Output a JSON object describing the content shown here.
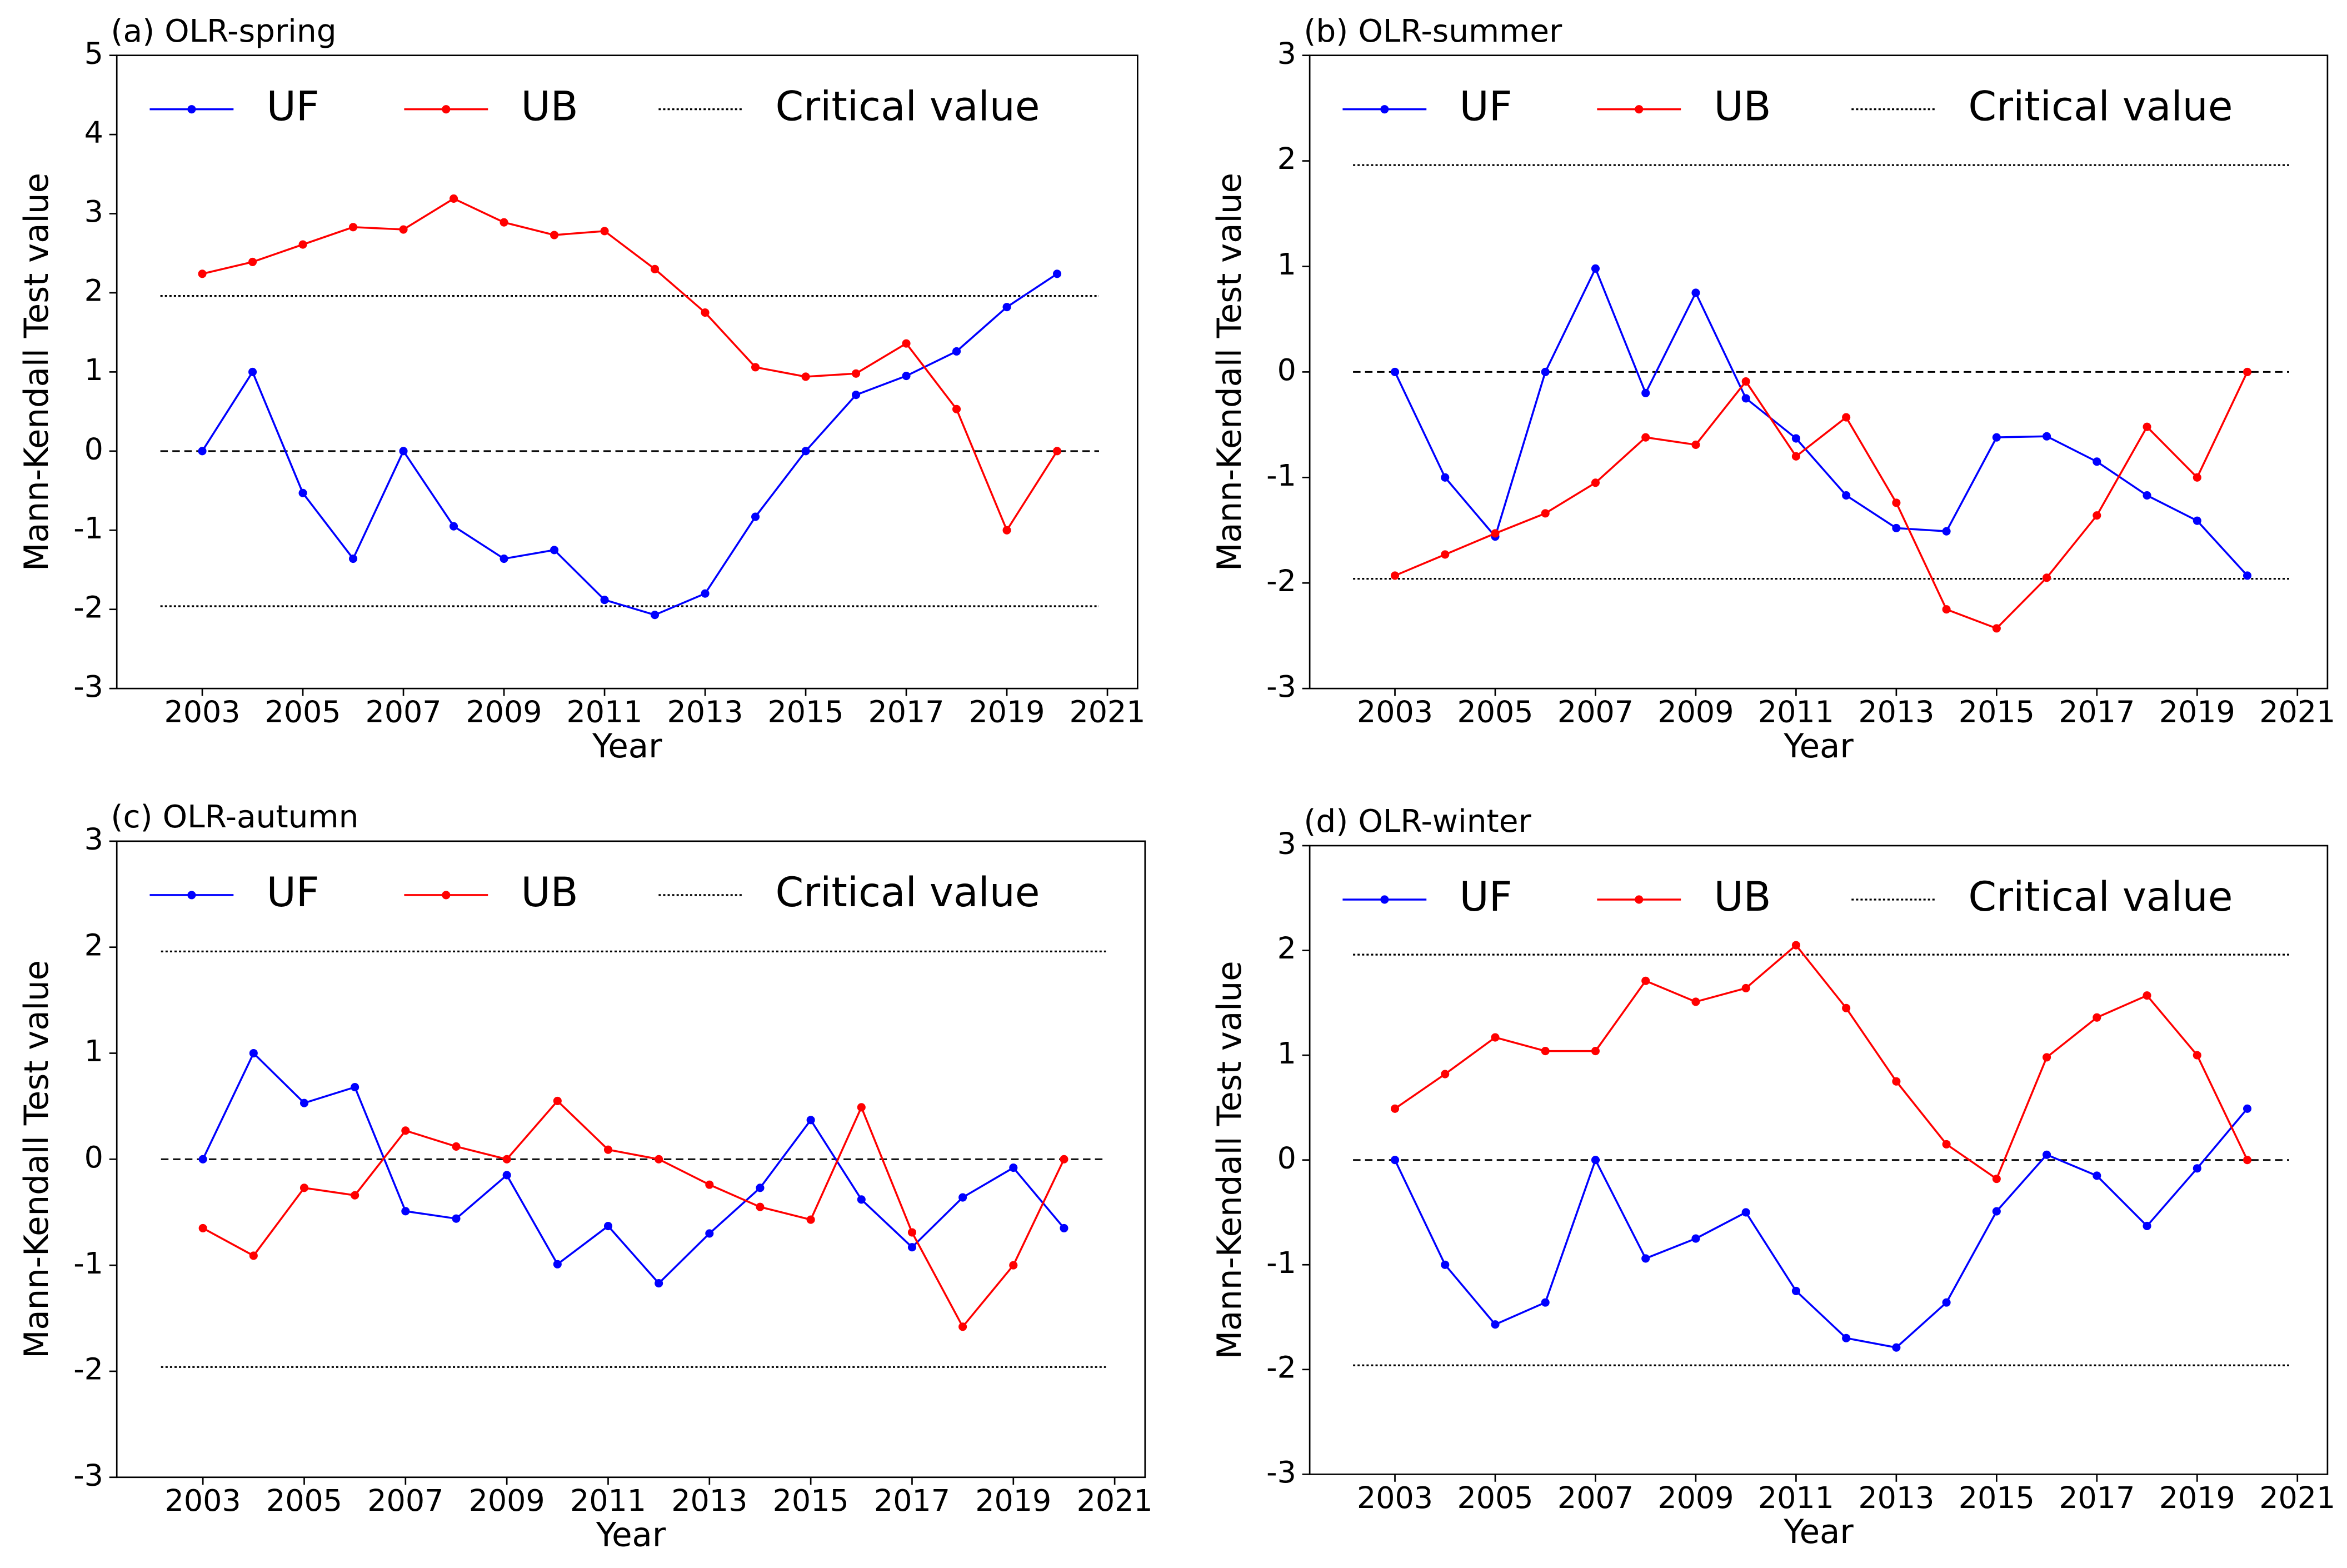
{
  "chart_data": [
    {
      "type": "line",
      "title": "(a) OLR-spring",
      "x_label": "Year",
      "y_label": "Mann-Kendall Test value",
      "x": [
        2003,
        2004,
        2005,
        2006,
        2007,
        2008,
        2009,
        2010,
        2011,
        2012,
        2013,
        2014,
        2015,
        2016,
        2017,
        2018,
        2019,
        2020
      ],
      "series": [
        {
          "name": "UF",
          "color": "#0000ff",
          "values": [
            0,
            1.0,
            -0.53,
            -1.36,
            0,
            -0.95,
            -1.36,
            -1.25,
            -1.88,
            -2.07,
            -1.8,
            -0.83,
            0,
            0.71,
            0.95,
            1.26,
            1.82,
            2.24
          ]
        },
        {
          "name": "UB",
          "color": "#ff0000",
          "values": [
            2.24,
            2.39,
            2.61,
            2.83,
            2.8,
            3.19,
            2.89,
            2.73,
            2.78,
            2.3,
            1.75,
            1.06,
            0.94,
            0.98,
            1.36,
            0.53,
            -1.0,
            0
          ]
        }
      ],
      "reference_lines": [
        {
          "name": "Critical value",
          "values": [
            1.96,
            -1.96
          ],
          "style": "dotted"
        },
        {
          "values": [
            0
          ],
          "style": "dashed"
        }
      ],
      "xlim": [
        2001.3,
        2021.6
      ],
      "xticks": [
        2003,
        2005,
        2007,
        2009,
        2011,
        2013,
        2015,
        2017,
        2019,
        2021
      ],
      "ylim": [
        -3,
        5
      ],
      "yticks": [
        -3,
        -2,
        -1,
        0,
        1,
        2,
        3,
        4,
        5
      ],
      "legend": "top"
    },
    {
      "type": "line",
      "title": "(b) OLR-summer",
      "x_label": "Year",
      "y_label": "Mann-Kendall Test value",
      "x": [
        2003,
        2004,
        2005,
        2006,
        2007,
        2008,
        2009,
        2010,
        2011,
        2012,
        2013,
        2014,
        2015,
        2016,
        2017,
        2018,
        2019,
        2020
      ],
      "series": [
        {
          "name": "UF",
          "color": "#0000ff",
          "values": [
            0,
            -1.0,
            -1.56,
            0,
            0.98,
            -0.2,
            0.75,
            -0.25,
            -0.63,
            -1.17,
            -1.48,
            -1.51,
            -0.62,
            -0.61,
            -0.85,
            -1.17,
            -1.41,
            -1.93
          ]
        },
        {
          "name": "UB",
          "color": "#ff0000",
          "values": [
            -1.93,
            -1.73,
            -1.53,
            -1.34,
            -1.05,
            -0.62,
            -0.69,
            -0.09,
            -0.8,
            -0.43,
            -1.24,
            -2.25,
            -2.43,
            -1.95,
            -1.36,
            -0.52,
            -1.0,
            0
          ]
        }
      ],
      "reference_lines": [
        {
          "name": "Critical value",
          "values": [
            1.96,
            -1.96
          ],
          "style": "dotted"
        },
        {
          "values": [
            0
          ],
          "style": "dashed"
        }
      ],
      "xlim": [
        2001.3,
        2021.6
      ],
      "xticks": [
        2003,
        2005,
        2007,
        2009,
        2011,
        2013,
        2015,
        2017,
        2019,
        2021
      ],
      "ylim": [
        -3,
        3
      ],
      "yticks": [
        -3,
        -2,
        -1,
        0,
        1,
        2,
        3
      ],
      "legend": "top"
    },
    {
      "type": "line",
      "title": "(c) OLR-autumn",
      "x_label": "Year",
      "y_label": "Mann-Kendall Test value",
      "x": [
        2003,
        2004,
        2005,
        2006,
        2007,
        2008,
        2009,
        2010,
        2011,
        2012,
        2013,
        2014,
        2015,
        2016,
        2017,
        2018,
        2019,
        2020
      ],
      "series": [
        {
          "name": "UF",
          "color": "#0000ff",
          "values": [
            0,
            1.0,
            0.53,
            0.68,
            -0.49,
            -0.56,
            -0.15,
            -0.99,
            -0.63,
            -1.17,
            -0.7,
            -0.27,
            0.37,
            -0.38,
            -0.83,
            -0.36,
            -0.08,
            -0.65
          ]
        },
        {
          "name": "UB",
          "color": "#ff0000",
          "values": [
            -0.65,
            -0.91,
            -0.27,
            -0.34,
            0.27,
            0.12,
            0,
            0.55,
            0.09,
            0,
            -0.24,
            -0.45,
            -0.57,
            0.49,
            -0.69,
            -1.58,
            -1.0,
            0
          ]
        }
      ],
      "reference_lines": [
        {
          "name": "Critical value",
          "values": [
            1.96,
            -1.96
          ],
          "style": "dotted"
        },
        {
          "values": [
            0
          ],
          "style": "dashed"
        }
      ],
      "xlim": [
        2001.3,
        2021.6
      ],
      "xticks": [
        2003,
        2005,
        2007,
        2009,
        2011,
        2013,
        2015,
        2017,
        2019,
        2021
      ],
      "ylim": [
        -3,
        3
      ],
      "yticks": [
        -3,
        -2,
        -1,
        0,
        1,
        2,
        3
      ],
      "legend": "top"
    },
    {
      "type": "line",
      "title": "(d) OLR-winter",
      "x_label": "Year",
      "y_label": "Mann-Kendall Test value",
      "x": [
        2003,
        2004,
        2005,
        2006,
        2007,
        2008,
        2009,
        2010,
        2011,
        2012,
        2013,
        2014,
        2015,
        2016,
        2017,
        2018,
        2019,
        2020
      ],
      "series": [
        {
          "name": "UF",
          "color": "#0000ff",
          "values": [
            0,
            -1.0,
            -1.57,
            -1.36,
            0,
            -0.94,
            -0.75,
            -0.5,
            -1.25,
            -1.7,
            -1.79,
            -1.36,
            -0.49,
            0.05,
            -0.15,
            -0.63,
            -0.08,
            0.49
          ]
        },
        {
          "name": "UB",
          "color": "#ff0000",
          "values": [
            0.49,
            0.82,
            1.17,
            1.04,
            1.04,
            1.71,
            1.51,
            1.64,
            2.05,
            1.45,
            0.75,
            0.15,
            -0.18,
            0.98,
            1.36,
            1.57,
            1.0,
            0
          ]
        }
      ],
      "reference_lines": [
        {
          "name": "Critical value",
          "values": [
            1.96,
            -1.96
          ],
          "style": "dotted"
        },
        {
          "values": [
            0
          ],
          "style": "dashed"
        }
      ],
      "xlim": [
        2001.3,
        2021.6
      ],
      "xticks": [
        2003,
        2005,
        2007,
        2009,
        2011,
        2013,
        2015,
        2017,
        2019,
        2021
      ],
      "ylim": [
        -3,
        3
      ],
      "yticks": [
        -3,
        -2,
        -1,
        0,
        1,
        2,
        3
      ],
      "legend": "top"
    }
  ]
}
